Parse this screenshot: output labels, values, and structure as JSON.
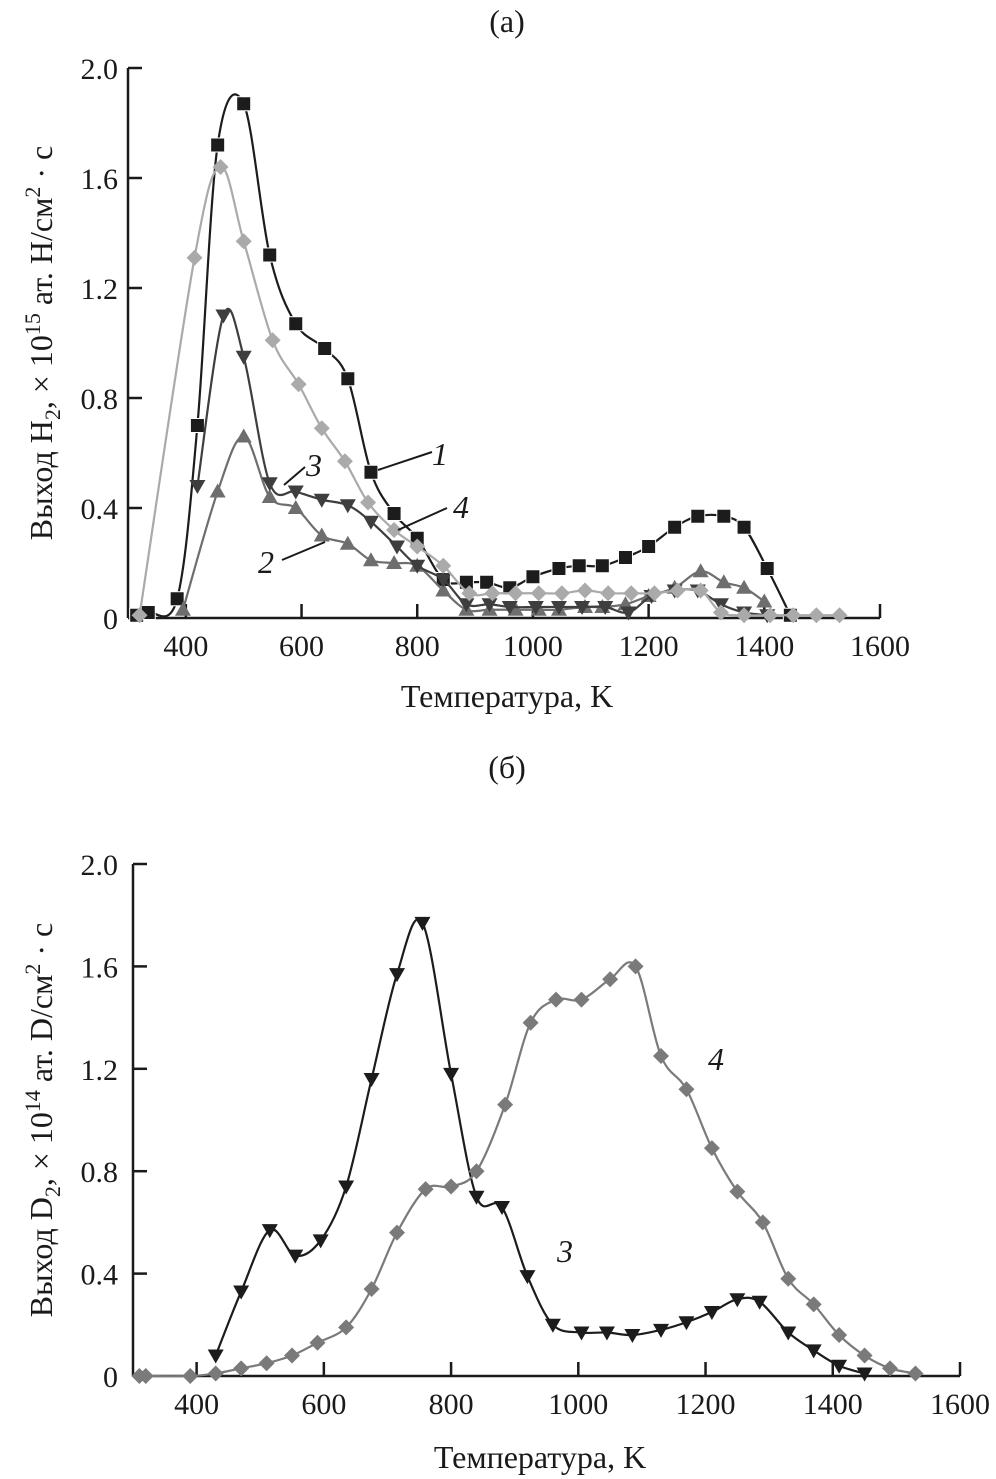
{
  "chart_data": [
    {
      "type": "line",
      "panel_label": "(a)",
      "xlabel": "Температура, K",
      "ylabel_parts": {
        "pre": "Выход H",
        "sub": "2",
        "mid": ", × 10",
        "sup": "15",
        "post": " ат. H/см",
        "sup2": "2",
        "end": " · с"
      },
      "xlim": [
        300,
        1600
      ],
      "ylim": [
        0,
        2.0
      ],
      "xticks": [
        400,
        600,
        800,
        1000,
        1200,
        1400,
        1600
      ],
      "yticks": [
        0,
        0.4,
        0.8,
        1.2,
        1.6,
        2.0
      ],
      "ytick_labels": [
        "0",
        "0.4",
        "0.8",
        "1.2",
        "1.6",
        "2.0"
      ],
      "grid": false,
      "legend": "inline-labels",
      "series": [
        {
          "name": "1",
          "marker": "square",
          "color": "#1c1c1c",
          "x": [
            315,
            335,
            385,
            420,
            455,
            500,
            545,
            590,
            640,
            680,
            720,
            760,
            800,
            845,
            885,
            920,
            960,
            1000,
            1045,
            1080,
            1120,
            1160,
            1200,
            1245,
            1285,
            1330,
            1365,
            1405,
            1445
          ],
          "y": [
            0.01,
            0.02,
            0.07,
            0.7,
            1.72,
            1.87,
            1.32,
            1.07,
            0.98,
            0.87,
            0.53,
            0.38,
            0.29,
            0.14,
            0.13,
            0.13,
            0.11,
            0.15,
            0.18,
            0.19,
            0.19,
            0.22,
            0.26,
            0.33,
            0.37,
            0.37,
            0.33,
            0.18,
            0.01
          ]
        },
        {
          "name": "2",
          "marker": "triangle-up",
          "color": "#6e6e6e",
          "x": [
            395,
            455,
            500,
            545,
            590,
            635,
            680,
            720,
            760,
            800,
            845,
            885,
            925,
            970,
            1010,
            1045,
            1090,
            1120,
            1160,
            1200,
            1245,
            1290,
            1330,
            1365,
            1400
          ],
          "y": [
            0.03,
            0.46,
            0.66,
            0.44,
            0.4,
            0.3,
            0.27,
            0.21,
            0.2,
            0.19,
            0.1,
            0.03,
            0.03,
            0.03,
            0.03,
            0.03,
            0.04,
            0.04,
            0.05,
            0.08,
            0.11,
            0.17,
            0.13,
            0.11,
            0.06
          ]
        },
        {
          "name": "3",
          "marker": "triangle-down",
          "color": "#3e3e3e",
          "x": [
            420,
            465,
            500,
            545,
            590,
            635,
            680,
            720,
            765,
            800,
            845,
            885,
            925,
            960,
            1005,
            1045,
            1085,
            1125,
            1165,
            1205,
            1245,
            1285,
            1325,
            1365,
            1405
          ],
          "y": [
            0.48,
            1.1,
            0.95,
            0.49,
            0.46,
            0.43,
            0.41,
            0.35,
            0.26,
            0.19,
            0.14,
            0.05,
            0.05,
            0.04,
            0.04,
            0.04,
            0.04,
            0.04,
            0.02,
            0.08,
            0.1,
            0.1,
            0.05,
            0.02,
            0.01
          ]
        },
        {
          "name": "4",
          "marker": "diamond",
          "color": "#aaaaaa",
          "x": [
            320,
            415,
            460,
            500,
            550,
            595,
            635,
            675,
            715,
            760,
            800,
            845,
            890,
            930,
            970,
            1010,
            1050,
            1090,
            1130,
            1170,
            1210,
            1250,
            1290,
            1325,
            1365,
            1410,
            1450,
            1490,
            1530
          ],
          "y": [
            0.01,
            1.31,
            1.64,
            1.37,
            1.01,
            0.85,
            0.69,
            0.57,
            0.42,
            0.32,
            0.26,
            0.19,
            0.09,
            0.09,
            0.09,
            0.09,
            0.09,
            0.1,
            0.09,
            0.09,
            0.09,
            0.1,
            0.1,
            0.02,
            0.01,
            0.01,
            0.01,
            0.01,
            0.01
          ]
        }
      ],
      "annotations": [
        {
          "text": "1",
          "series": "1"
        },
        {
          "text": "2",
          "series": "2"
        },
        {
          "text": "3",
          "series": "3"
        },
        {
          "text": "4",
          "series": "4"
        }
      ]
    },
    {
      "type": "line",
      "panel_label": "(б)",
      "xlabel": "Температура, K",
      "ylabel_parts": {
        "pre": "Выход D",
        "sub": "2",
        "mid": ", × 10",
        "sup": "14",
        "post": " ат. D/см",
        "sup2": "2",
        "end": " · с"
      },
      "xlim": [
        300,
        1600
      ],
      "ylim": [
        0,
        2.0
      ],
      "xticks": [
        400,
        600,
        800,
        1000,
        1200,
        1400,
        1600
      ],
      "yticks": [
        0,
        0.4,
        0.8,
        1.2,
        1.6,
        2.0
      ],
      "ytick_labels": [
        "0",
        "0.4",
        "0.8",
        "1.2",
        "1.6",
        "2.0"
      ],
      "grid": false,
      "legend": "inline-labels",
      "series": [
        {
          "name": "3",
          "marker": "triangle-down",
          "color": "#1c1c1c",
          "x": [
            430,
            470,
            515,
            555,
            595,
            635,
            675,
            715,
            755,
            800,
            840,
            880,
            920,
            960,
            1005,
            1045,
            1085,
            1130,
            1170,
            1210,
            1250,
            1285,
            1330,
            1370,
            1410,
            1450
          ],
          "y": [
            0.08,
            0.33,
            0.57,
            0.47,
            0.53,
            0.74,
            1.16,
            1.57,
            1.77,
            1.18,
            0.7,
            0.66,
            0.39,
            0.2,
            0.17,
            0.17,
            0.16,
            0.18,
            0.21,
            0.25,
            0.3,
            0.29,
            0.17,
            0.1,
            0.04,
            0.01
          ]
        },
        {
          "name": "4",
          "marker": "diamond",
          "color": "#7a7a7a",
          "x": [
            310,
            320,
            390,
            430,
            470,
            510,
            550,
            590,
            635,
            675,
            715,
            760,
            800,
            840,
            885,
            925,
            965,
            1005,
            1050,
            1090,
            1130,
            1170,
            1210,
            1250,
            1290,
            1330,
            1370,
            1410,
            1450,
            1490,
            1530
          ],
          "y": [
            0.0,
            0.0,
            0.0,
            0.01,
            0.03,
            0.05,
            0.08,
            0.13,
            0.19,
            0.34,
            0.56,
            0.73,
            0.74,
            0.8,
            1.06,
            1.38,
            1.47,
            1.47,
            1.55,
            1.6,
            1.25,
            1.12,
            0.89,
            0.72,
            0.6,
            0.38,
            0.28,
            0.16,
            0.08,
            0.03,
            0.01
          ]
        }
      ],
      "annotations": [
        {
          "text": "3",
          "series": "3"
        },
        {
          "text": "4",
          "series": "4"
        }
      ]
    }
  ]
}
